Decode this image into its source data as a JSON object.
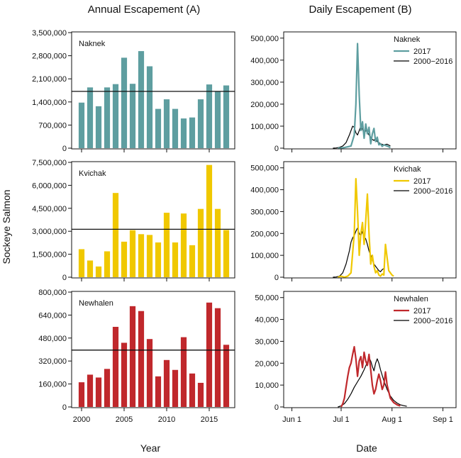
{
  "column_titles": {
    "annual": "Annual Escapement (A)",
    "daily": "Daily Escapement (B)"
  },
  "y_axis_title": "Sockeye Salmon",
  "x_axis_titles": {
    "annual": "Year",
    "daily": "Date"
  },
  "legend": {
    "current": "2017",
    "historic": "2000−2016"
  },
  "colors": {
    "Naknek": "#5e9ea0",
    "Kvichak": "#f0c800",
    "Newhalen": "#c0282c",
    "historic": "#000000"
  },
  "chart_data": [
    {
      "type": "bar",
      "panel": "Naknek annual",
      "label": "Naknek",
      "categories": [
        2000,
        2001,
        2002,
        2003,
        2004,
        2005,
        2006,
        2007,
        2008,
        2009,
        2010,
        2011,
        2012,
        2013,
        2014,
        2015,
        2016,
        2017
      ],
      "values": [
        1380000,
        1840000,
        1270000,
        1840000,
        1940000,
        2740000,
        1950000,
        2940000,
        2480000,
        1190000,
        1480000,
        1190000,
        900000,
        930000,
        1480000,
        1930000,
        1720000,
        1900000
      ],
      "reference_line": 1720000,
      "ylim": [
        0,
        3500000
      ],
      "yticks": [
        0,
        700000,
        1400000,
        2100000,
        2800000,
        3500000
      ],
      "ytick_labels": [
        "0",
        "700,000",
        "1,400,000",
        "2,100,000",
        "2,800,000",
        "3,500,000"
      ],
      "xticks": [
        2000,
        2005,
        2010,
        2015
      ],
      "xtick_labels": [
        "2000",
        "2005",
        "2010",
        "2015"
      ],
      "xlabel": "Year"
    },
    {
      "type": "bar",
      "panel": "Kvichak annual",
      "label": "Kvichak",
      "categories": [
        2000,
        2001,
        2002,
        2003,
        2004,
        2005,
        2006,
        2007,
        2008,
        2009,
        2010,
        2011,
        2012,
        2013,
        2014,
        2015,
        2016,
        2017
      ],
      "values": [
        1830000,
        1090000,
        700000,
        1690000,
        5500000,
        2320000,
        3070000,
        2810000,
        2760000,
        2270000,
        4210000,
        2270000,
        4160000,
        2090000,
        4460000,
        7330000,
        4460000,
        3080000
      ],
      "reference_line": 3130000,
      "ylim": [
        0,
        7500000
      ],
      "yticks": [
        0,
        1500000,
        3000000,
        4500000,
        6000000,
        7500000
      ],
      "ytick_labels": [
        "0",
        "1,500,000",
        "3,000,000",
        "4,500,000",
        "6,000,000",
        "7,500,000"
      ],
      "xticks": [
        2000,
        2005,
        2010,
        2015
      ],
      "xtick_labels": [
        "2000",
        "2005",
        "2010",
        "2015"
      ],
      "xlabel": "Year"
    },
    {
      "type": "bar",
      "panel": "Newhalen annual",
      "label": "Newhalen",
      "categories": [
        2000,
        2001,
        2002,
        2003,
        2004,
        2005,
        2006,
        2007,
        2008,
        2009,
        2010,
        2011,
        2012,
        2013,
        2014,
        2015,
        2016,
        2017
      ],
      "values": [
        172000,
        225000,
        205000,
        265000,
        558000,
        447000,
        702000,
        668000,
        473000,
        213000,
        327000,
        258000,
        486000,
        233000,
        168000,
        727000,
        688000,
        433000
      ],
      "reference_line": 396000,
      "ylim": [
        0,
        800000
      ],
      "yticks": [
        0,
        160000,
        320000,
        480000,
        640000,
        800000
      ],
      "ytick_labels": [
        "0",
        "160,000",
        "320,000",
        "480,000",
        "640,000",
        "800,000"
      ],
      "xticks": [
        2000,
        2005,
        2010,
        2015
      ],
      "xtick_labels": [
        "2000",
        "2005",
        "2010",
        "2015"
      ],
      "xlabel": "Year"
    },
    {
      "type": "line",
      "panel": "Naknek daily",
      "label": "Naknek",
      "x_unit": "days after Jun 1",
      "xlim": [
        -5,
        100
      ],
      "xticks": [
        0,
        30,
        61,
        92
      ],
      "xtick_labels": [
        "Jun 1",
        "Jul 1",
        "Aug 1",
        "Sep 1"
      ],
      "ylim": [
        0,
        525000
      ],
      "yticks": [
        0,
        100000,
        200000,
        300000,
        400000,
        500000
      ],
      "ytick_labels": [
        "0",
        "100,000",
        "200,000",
        "300,000",
        "400,000",
        "500,000"
      ],
      "xlabel": "Date",
      "series": [
        {
          "name": "2017",
          "x": [
            28,
            30,
            32,
            34,
            36,
            38,
            39,
            40,
            41,
            42,
            43,
            44,
            45,
            46,
            47,
            48,
            49,
            50,
            51,
            52,
            53,
            54,
            55,
            56,
            58,
            60
          ],
          "y": [
            0,
            1000,
            3000,
            6000,
            10000,
            60000,
            200000,
            475000,
            240000,
            80000,
            120000,
            45000,
            110000,
            65000,
            95000,
            20000,
            65000,
            90000,
            30000,
            50000,
            15000,
            20000,
            8000,
            15000,
            10000,
            3000
          ]
        },
        {
          "name": "2000−2016",
          "x": [
            25,
            27,
            29,
            31,
            33,
            35,
            36,
            37,
            38,
            39,
            40,
            41,
            42,
            43,
            44,
            45,
            46,
            47,
            48,
            49,
            50,
            51,
            52,
            54,
            56,
            58,
            60
          ],
          "y": [
            0,
            1000,
            4000,
            10000,
            25000,
            60000,
            80000,
            100000,
            95000,
            70000,
            60000,
            80000,
            100000,
            85000,
            65000,
            80000,
            75000,
            60000,
            50000,
            40000,
            35000,
            45000,
            30000,
            20000,
            15000,
            18000,
            10000
          ]
        }
      ]
    },
    {
      "type": "line",
      "panel": "Kvichak daily",
      "label": "Kvichak",
      "x_unit": "days after Jun 1",
      "xlim": [
        -5,
        100
      ],
      "xticks": [
        0,
        30,
        61,
        92
      ],
      "xtick_labels": [
        "Jun 1",
        "Jul 1",
        "Aug 1",
        "Sep 1"
      ],
      "ylim": [
        0,
        525000
      ],
      "yticks": [
        0,
        100000,
        200000,
        300000,
        400000,
        500000
      ],
      "ytick_labels": [
        "0",
        "100,000",
        "200,000",
        "300,000",
        "400,000",
        "500,000"
      ],
      "xlabel": "Date",
      "series": [
        {
          "name": "2017",
          "x": [
            28,
            30,
            32,
            34,
            36,
            38,
            39,
            40,
            41,
            42,
            43,
            44,
            45,
            46,
            47,
            48,
            49,
            50,
            51,
            52,
            53,
            54,
            55,
            56,
            57,
            58,
            59,
            60,
            61,
            62
          ],
          "y": [
            0,
            5000,
            0,
            5000,
            20000,
            200000,
            450000,
            300000,
            100000,
            200000,
            250000,
            150000,
            260000,
            380000,
            200000,
            60000,
            100000,
            50000,
            20000,
            30000,
            10000,
            5000,
            15000,
            10000,
            150000,
            90000,
            30000,
            20000,
            10000,
            5000
          ]
        },
        {
          "name": "2000−2016",
          "x": [
            25,
            27,
            29,
            31,
            33,
            35,
            36,
            37,
            38,
            39,
            40,
            41,
            42,
            43,
            44,
            45,
            46,
            47,
            48,
            49,
            50,
            51,
            52,
            53,
            54,
            55,
            56
          ],
          "y": [
            0,
            1000,
            5000,
            20000,
            60000,
            120000,
            160000,
            180000,
            190000,
            210000,
            225000,
            200000,
            190000,
            210000,
            185000,
            175000,
            150000,
            120000,
            100000,
            80000,
            60000,
            50000,
            40000,
            30000,
            25000,
            35000,
            40000
          ]
        }
      ]
    },
    {
      "type": "line",
      "panel": "Newhalen daily",
      "label": "Newhalen",
      "x_unit": "days after Jun 1",
      "xlim": [
        -5,
        100
      ],
      "xticks": [
        0,
        30,
        61,
        92
      ],
      "xtick_labels": [
        "Jun 1",
        "Jul 1",
        "Aug 1",
        "Sep 1"
      ],
      "ylim": [
        0,
        52500
      ],
      "yticks": [
        0,
        10000,
        20000,
        30000,
        40000,
        50000
      ],
      "ytick_labels": [
        "0",
        "10,000",
        "20,000",
        "30,000",
        "40,000",
        "50,000"
      ],
      "xlabel": "Date",
      "series": [
        {
          "name": "2017",
          "x": [
            30,
            31,
            32,
            33,
            34,
            35,
            36,
            37,
            38,
            39,
            40,
            41,
            42,
            43,
            44,
            45,
            46,
            47,
            48,
            49,
            50,
            51,
            52,
            53,
            54,
            55,
            56,
            57,
            58,
            60,
            62,
            64,
            66
          ],
          "y": [
            0,
            1500,
            4000,
            9000,
            14000,
            18000,
            20000,
            24000,
            27500,
            22000,
            14000,
            21000,
            23000,
            18000,
            25000,
            21000,
            19000,
            24000,
            17000,
            10000,
            6000,
            8000,
            12000,
            15000,
            12000,
            8000,
            10000,
            16000,
            10000,
            4000,
            2000,
            1000,
            500
          ]
        },
        {
          "name": "2000−2016",
          "x": [
            28,
            30,
            32,
            34,
            36,
            38,
            40,
            42,
            44,
            46,
            47,
            48,
            49,
            50,
            51,
            52,
            53,
            54,
            56,
            58,
            60,
            62,
            64,
            66,
            68,
            70
          ],
          "y": [
            0,
            500,
            1500,
            3500,
            6000,
            9000,
            11500,
            14000,
            17000,
            20500,
            22500,
            21000,
            18500,
            16500,
            20000,
            22000,
            20000,
            17000,
            12000,
            8000,
            5000,
            3000,
            1800,
            1000,
            600,
            300
          ]
        }
      ]
    }
  ]
}
